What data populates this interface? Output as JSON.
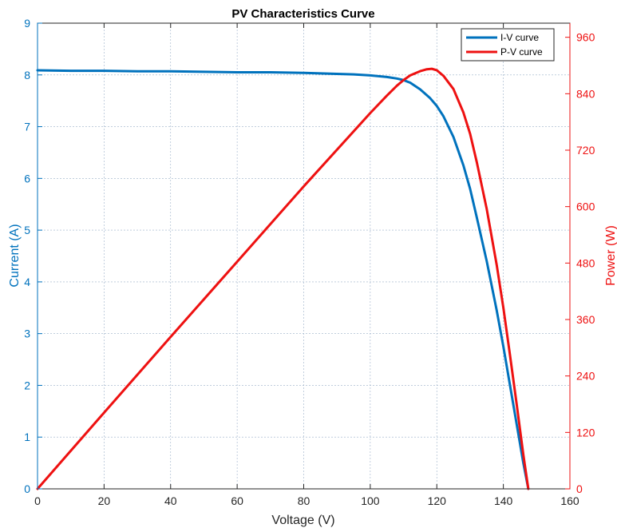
{
  "chart_data": {
    "type": "line",
    "title": "PV Characteristics Curve",
    "xlabel": "Voltage (V)",
    "ylabel_left": "Current (A)",
    "ylabel_right": "Power (W)",
    "xlim": [
      0,
      160
    ],
    "ylim_left": [
      0,
      9
    ],
    "ylim_right": [
      0,
      990
    ],
    "x_ticks": [
      "0",
      "20",
      "40",
      "60",
      "80",
      "100",
      "120",
      "140",
      "160"
    ],
    "y_left_ticks": [
      "0",
      "1",
      "2",
      "3",
      "4",
      "5",
      "6",
      "7",
      "8",
      "9"
    ],
    "y_right_ticks": [
      "0",
      "120",
      "240",
      "360",
      "480",
      "600",
      "720",
      "840",
      "960"
    ],
    "grid": true,
    "legend_position": "top-right",
    "colors": {
      "iv": "#0072BD",
      "pv": "#EE1111",
      "axis_left": "#0072BD",
      "axis_right": "#EE1111",
      "grid": "#9bb0c8"
    },
    "series": [
      {
        "name": "I-V curve",
        "axis": "left",
        "x": [
          0,
          10,
          20,
          30,
          40,
          50,
          60,
          70,
          80,
          90,
          95,
          100,
          105,
          108,
          110,
          112,
          115,
          118,
          120,
          122,
          125,
          128,
          130,
          132,
          135,
          138,
          140,
          142,
          144,
          146,
          147.5
        ],
        "y": [
          8.09,
          8.08,
          8.08,
          8.07,
          8.07,
          8.06,
          8.05,
          8.05,
          8.04,
          8.02,
          8.01,
          7.99,
          7.96,
          7.93,
          7.9,
          7.85,
          7.72,
          7.55,
          7.4,
          7.2,
          6.8,
          6.25,
          5.8,
          5.25,
          4.4,
          3.45,
          2.75,
          2.0,
          1.25,
          0.5,
          0.0
        ]
      },
      {
        "name": "P-V curve",
        "axis": "right",
        "x": [
          0,
          20,
          40,
          60,
          80,
          100,
          105,
          108,
          110,
          112,
          115,
          117,
          118.5,
          120,
          122,
          125,
          128,
          130,
          132,
          135,
          138,
          140,
          142,
          144,
          146,
          147.5
        ],
        "y": [
          0,
          162,
          323,
          483,
          643,
          799,
          836,
          857,
          869,
          879,
          888,
          892,
          893,
          890,
          878,
          850,
          800,
          755,
          695,
          595,
          476,
          385,
          284,
          180,
          73,
          0
        ]
      }
    ]
  }
}
